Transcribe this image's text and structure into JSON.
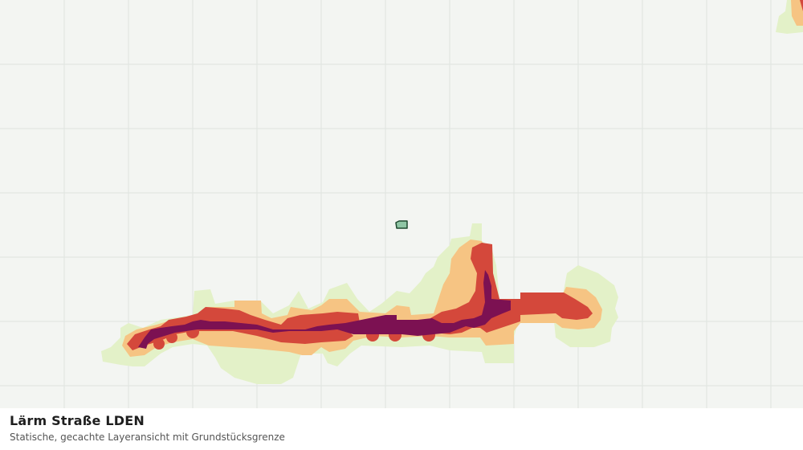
{
  "layer": {
    "title": "Lärm Straße LDEN",
    "subtitle": "Statische, gecachte Layeransicht mit Grundstücksgrenze"
  },
  "colors": {
    "background": "#f3f5f2",
    "grid": "#dfe3df",
    "band_light": "#e3f1c8",
    "band_orange": "#f6c483",
    "band_red": "#d4483b",
    "band_purple": "#7c1152",
    "parcel_fill": "#8fc6a5",
    "parcel_stroke": "#1e4a2f"
  }
}
